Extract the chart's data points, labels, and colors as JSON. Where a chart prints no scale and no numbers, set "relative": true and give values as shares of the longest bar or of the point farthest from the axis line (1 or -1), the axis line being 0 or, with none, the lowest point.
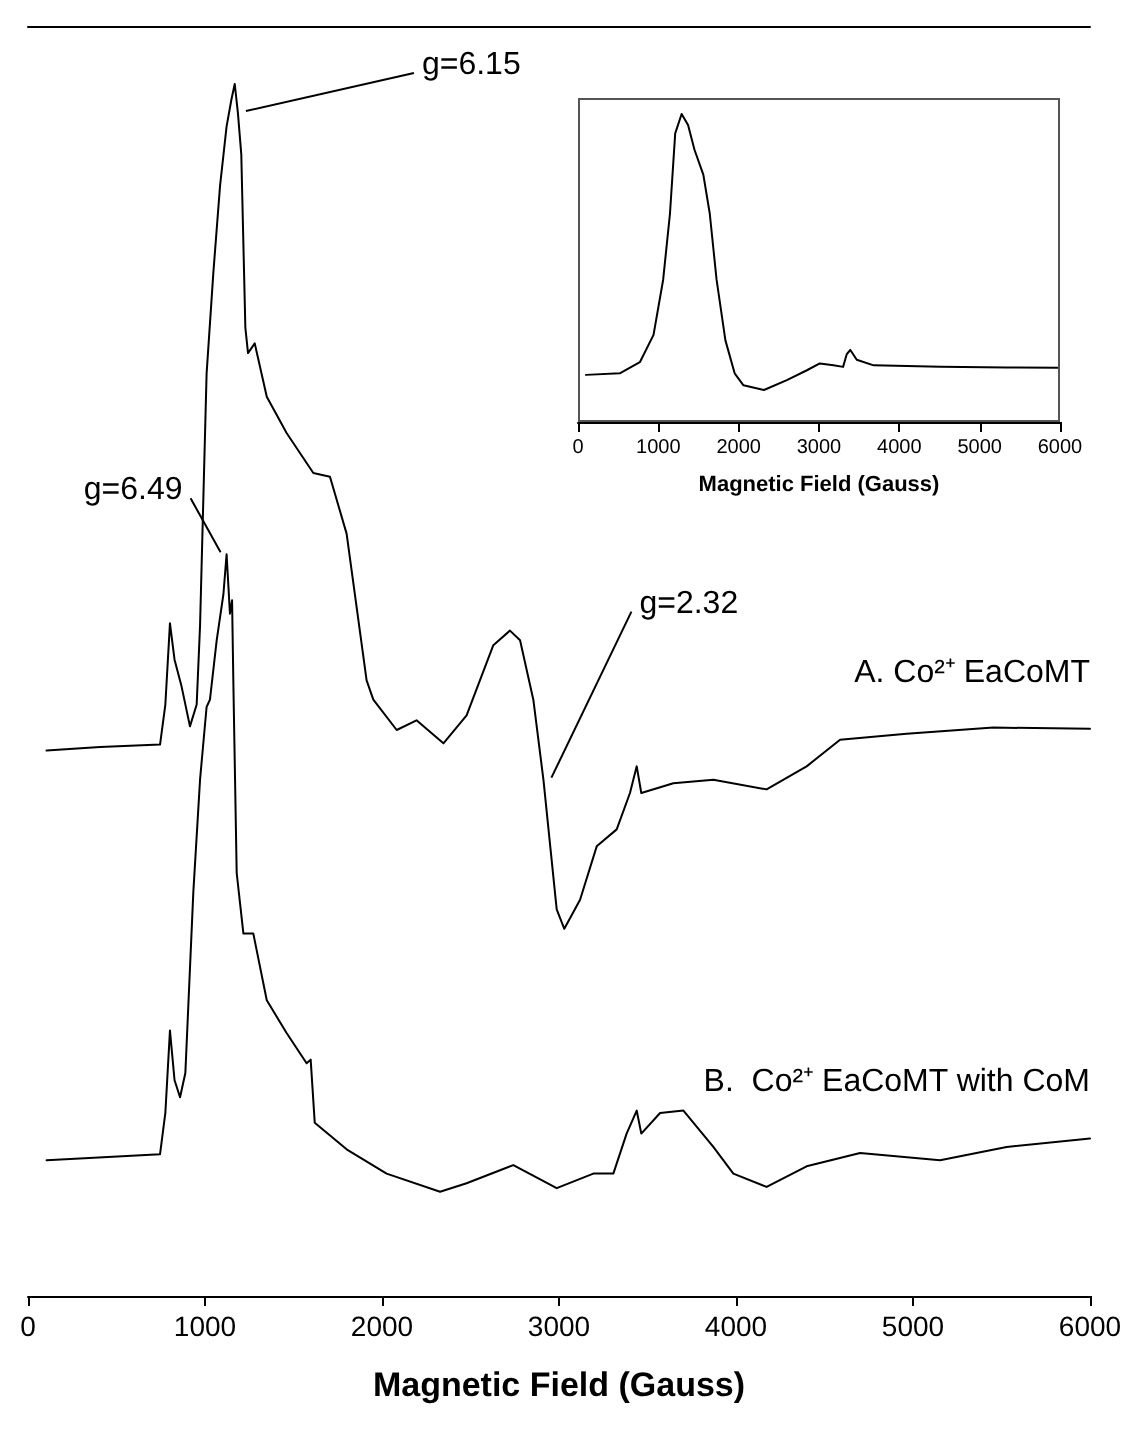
{
  "chart_data": [
    {
      "type": "line",
      "relative": true,
      "xlabel": "Magnetic Field (Gauss)",
      "xlim": [
        0,
        6000
      ],
      "xticks": [
        0,
        1000,
        2000,
        3000,
        4000,
        5000,
        6000
      ],
      "grid": false,
      "legend": false,
      "marker": "none",
      "line_style": "solid",
      "annotations": [
        {
          "text": "g=6.15",
          "x": 1186,
          "y": 0.976
        },
        {
          "text": "g=6.49",
          "x": 1122,
          "y": 0.612
        },
        {
          "text": "g=2.32",
          "x": 2912,
          "y": 0.426
        }
      ],
      "series": [
        {
          "name": "A. Co²⁺ EaCoMT",
          "color": "#000000",
          "x": [
            105,
            407,
            746,
            776,
            802,
            828,
            866,
            915,
            953,
            972,
            1009,
            1047,
            1085,
            1122,
            1149,
            1168,
            1186,
            1205,
            1228,
            1243,
            1281,
            1349,
            1461,
            1612,
            1706,
            1800,
            1913,
            1951,
            2083,
            2195,
            2347,
            2478,
            2629,
            2723,
            2780,
            2855,
            2912,
            2987,
            3030,
            3119,
            3213,
            3326,
            3401,
            3439,
            3465,
            3646,
            3872,
            4173,
            4399,
            4588,
            4964,
            5454,
            6000
          ],
          "values": [
            0.45,
            0.453,
            0.455,
            0.488,
            0.555,
            0.525,
            0.504,
            0.47,
            0.488,
            0.553,
            0.761,
            0.844,
            0.916,
            0.965,
            0.987,
            1,
            0.976,
            0.942,
            0.799,
            0.778,
            0.786,
            0.742,
            0.712,
            0.679,
            0.676,
            0.629,
            0.508,
            0.492,
            0.467,
            0.475,
            0.456,
            0.479,
            0.537,
            0.549,
            0.541,
            0.492,
            0.426,
            0.319,
            0.303,
            0.327,
            0.371,
            0.385,
            0.415,
            0.437,
            0.415,
            0.423,
            0.426,
            0.418,
            0.437,
            0.459,
            0.464,
            0.469,
            0.468
          ]
        },
        {
          "name": "B.  Co²⁺ EaCoMT with CoM",
          "color": "#000000",
          "x": [
            105,
            746,
            776,
            802,
            828,
            859,
            889,
            934,
            972,
            1009,
            1028,
            1066,
            1104,
            1122,
            1141,
            1153,
            1160,
            1179,
            1217,
            1273,
            1349,
            1461,
            1574,
            1597,
            1620,
            1800,
            2026,
            2328,
            2478,
            2742,
            2987,
            3194,
            3307,
            3382,
            3439,
            3465,
            3571,
            3703,
            3872,
            3985,
            4173,
            4399,
            4701,
            5153,
            5529,
            6000
          ],
          "values": [
            0.112,
            0.117,
            0.151,
            0.219,
            0.178,
            0.164,
            0.184,
            0.333,
            0.426,
            0.486,
            0.492,
            0.541,
            0.579,
            0.612,
            0.563,
            0.574,
            0.508,
            0.349,
            0.299,
            0.299,
            0.244,
            0.217,
            0.192,
            0.195,
            0.143,
            0.121,
            0.101,
            0.086,
            0.093,
            0.108,
            0.089,
            0.101,
            0.101,
            0.134,
            0.153,
            0.134,
            0.151,
            0.153,
            0.123,
            0.101,
            0.09,
            0.107,
            0.118,
            0.112,
            0.123,
            0.13
          ]
        }
      ]
    },
    {
      "type": "line",
      "relative": true,
      "xlabel": "Magnetic Field (Gauss)",
      "xlim": [
        0,
        6000
      ],
      "xticks": [
        0,
        1000,
        2000,
        3000,
        4000,
        5000,
        6000
      ],
      "grid": false,
      "legend": false,
      "marker": "none",
      "line_style": "solid",
      "series": [
        {
          "color": "#000000",
          "x": [
            100,
            520,
            770,
            940,
            1060,
            1145,
            1210,
            1290,
            1370,
            1450,
            1560,
            1640,
            1725,
            1835,
            1950,
            2060,
            2315,
            2600,
            2850,
            3010,
            3180,
            3300,
            3345,
            3390,
            3470,
            3680,
            4510,
            5340,
            5985
          ],
          "values": [
            0.153,
            0.158,
            0.194,
            0.283,
            0.462,
            0.677,
            0.937,
            1,
            0.964,
            0.884,
            0.803,
            0.677,
            0.462,
            0.265,
            0.158,
            0.119,
            0.104,
            0.136,
            0.168,
            0.19,
            0.184,
            0.179,
            0.22,
            0.234,
            0.202,
            0.184,
            0.179,
            0.177,
            0.176
          ]
        }
      ]
    }
  ]
}
